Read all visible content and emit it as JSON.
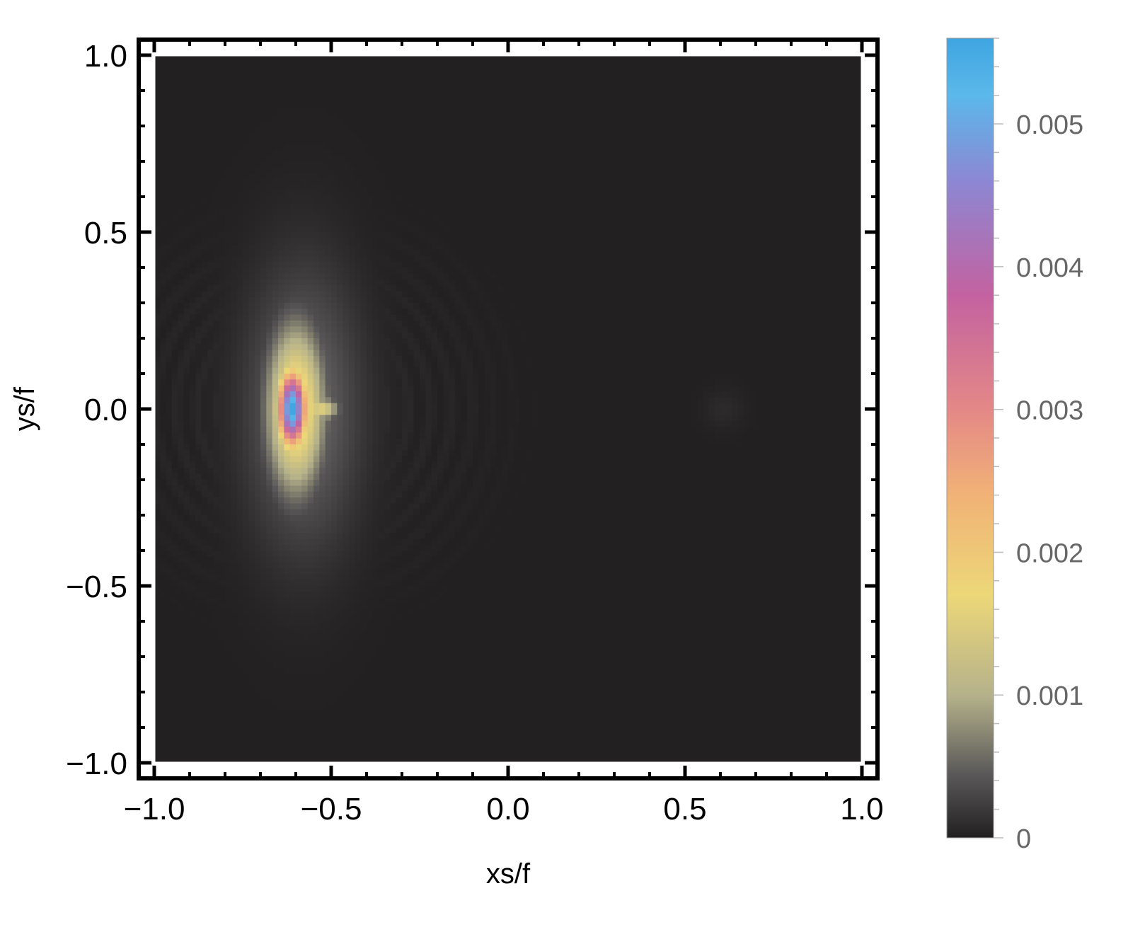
{
  "chart_data": {
    "type": "heatmap",
    "title": "",
    "xlabel": "xs/f",
    "ylabel": "ys/f",
    "xlim": [
      -1.0,
      1.0
    ],
    "ylim": [
      -1.0,
      1.0
    ],
    "x_ticks": [
      "−1.0",
      "−0.5",
      "0.0",
      "0.5",
      "1.0"
    ],
    "x_tick_values": [
      -1.0,
      -0.5,
      0.0,
      0.5,
      1.0
    ],
    "y_ticks": [
      "1.0",
      "0.5",
      "0.0",
      "−0.5",
      "−1.0"
    ],
    "y_tick_values": [
      1.0,
      0.5,
      0.0,
      -0.5,
      -1.0
    ],
    "grid": false,
    "colorbar": {
      "range": [
        0,
        0.0056
      ],
      "ticks": [
        "0.005",
        "0.004",
        "0.003",
        "0.002",
        "0.001",
        "0"
      ],
      "tick_values": [
        0.005,
        0.004,
        0.003,
        0.002,
        0.001,
        0
      ],
      "colormap": [
        {
          "value": 0.0,
          "color": "#222021"
        },
        {
          "value": 0.00045,
          "color": "#5b5959"
        },
        {
          "value": 0.001,
          "color": "#b5b28b"
        },
        {
          "value": 0.0017,
          "color": "#ecd778"
        },
        {
          "value": 0.0024,
          "color": "#f1b276"
        },
        {
          "value": 0.003,
          "color": "#e48887"
        },
        {
          "value": 0.0038,
          "color": "#c362a0"
        },
        {
          "value": 0.0046,
          "color": "#8c87d3"
        },
        {
          "value": 0.0052,
          "color": "#5bb8ea"
        },
        {
          "value": 0.0056,
          "color": "#3fa5e0"
        }
      ]
    },
    "features": [
      {
        "kind": "peak",
        "x": -0.61,
        "y": 0.0,
        "value": 0.0056,
        "sx": 0.028,
        "sy": 0.075
      },
      {
        "kind": "lobe",
        "x": -0.6,
        "y": 0.0,
        "value": 0.0021,
        "sx": 0.055,
        "sy": 0.16
      },
      {
        "kind": "lobe",
        "x": -0.53,
        "y": 0.0,
        "value": 0.0016,
        "sx": 0.035,
        "sy": 0.022
      },
      {
        "kind": "halo",
        "x": -0.58,
        "y": 0.0,
        "value": 0.0006,
        "sx": 0.11,
        "sy": 0.27
      },
      {
        "kind": "side-peak",
        "x": 0.61,
        "y": 0.0,
        "value": 8e-05,
        "sx": 0.04,
        "sy": 0.04
      }
    ],
    "rings": {
      "center_x": -0.58,
      "center_y": 0.0,
      "spacing": 0.06,
      "value": 0.00012,
      "extent": 0.68
    }
  }
}
